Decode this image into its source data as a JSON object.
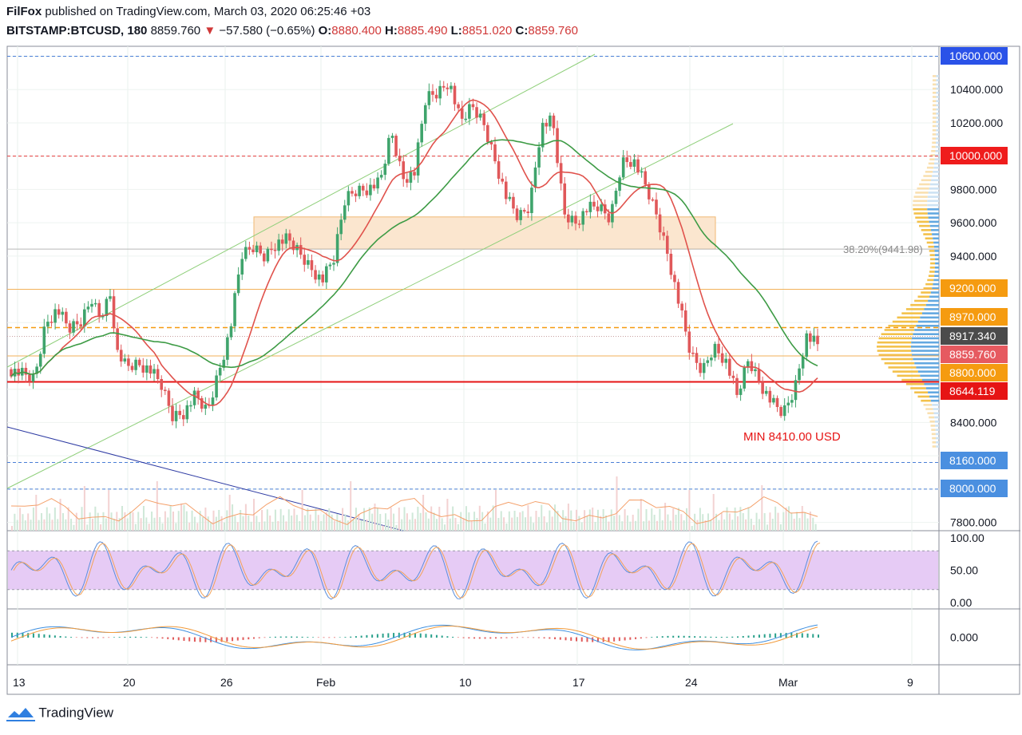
{
  "header": {
    "author": "FilFox",
    "published_text": "published on TradingView.com, March 03, 2020 06:25:46 +03",
    "symbol": "BITSTAMP:BTCUSD, 180",
    "last": "8859.760",
    "change": "−57.580 (−0.65%)",
    "open_label": "O:",
    "open": "8880.400",
    "high_label": "H:",
    "high": "8885.490",
    "low_label": "L:",
    "low": "8851.020",
    "close_label": "C:",
    "close": "8859.760"
  },
  "brand": {
    "name": "TradingView",
    "icon": "tradingview-logo-icon"
  },
  "colors": {
    "up": "#3fa46c",
    "down": "#e0585a",
    "ma_fast": "#e0524c",
    "ma_slow": "#3d9b45",
    "zone_fill": "#fbe6cf",
    "stoch_fill": "#e6cbf5",
    "blue_line": "#2e3ba3",
    "channel": "#8fcf7a",
    "label_blue": "#2a52e8",
    "label_red": "#ef1c1c",
    "label_orange": "#f59b10",
    "label_dark": "#4b4b4b",
    "label_pink": "#e65a60",
    "label_lightblue": "#4a8fe0",
    "label_darkred": "#e61414"
  },
  "chart_data": {
    "type": "candlestick",
    "symbol": "BITSTAMP:BTCUSD",
    "interval": "180",
    "ohlc_last": {
      "open": 8880.4,
      "high": 8885.49,
      "low": 8851.02,
      "close": 8859.76
    },
    "price_axis": {
      "range": [
        7750,
        10660
      ],
      "ticks": [
        "10400.000",
        "10200.000",
        "9800.000",
        "9600.000",
        "9400.000",
        "8400.000",
        "7800.000"
      ]
    },
    "time_axis": {
      "labels": [
        "13",
        "20",
        "26",
        "Feb",
        "10",
        "17",
        "24",
        "Mar",
        "9"
      ]
    },
    "price_labels": [
      {
        "text": "10600.000",
        "value": 10600,
        "color": "label_blue",
        "line": "dashed-blue"
      },
      {
        "text": "10000.000",
        "value": 10000,
        "color": "label_red",
        "line": "dashed-red"
      },
      {
        "text": "9200.000",
        "value": 9200,
        "color": "label_orange",
        "line": "thin-orange"
      },
      {
        "text": "8970.000",
        "value": 8970,
        "color": "label_orange",
        "line": "dashed-orange"
      },
      {
        "text": "8917.340",
        "value": 8917.34,
        "color": "label_dark",
        "line": "dotted"
      },
      {
        "text": "8859.760",
        "value": 8859.76,
        "color": "label_pink",
        "line": "none"
      },
      {
        "text": "8800.000",
        "value": 8800,
        "color": "label_orange",
        "line": "thin-orange"
      },
      {
        "text": "8644.119",
        "value": 8644.119,
        "color": "label_darkred",
        "line": "solid-red"
      },
      {
        "text": "8160.000",
        "value": 8160,
        "color": "label_lightblue",
        "line": "dashed-blue"
      },
      {
        "text": "8000.000",
        "value": 8000,
        "color": "label_lightblue",
        "line": "dashed-blue"
      }
    ],
    "fib_label": "38.20%(9441.98)",
    "fib_value": 9441.98,
    "zone": {
      "from": 9441.98,
      "to": 9635
    },
    "annotation": "MIN 8410.00 USD",
    "indicators": {
      "stochastic": {
        "ticks": [
          "100.00",
          "50.00",
          "0.00"
        ],
        "band": [
          20,
          80
        ]
      },
      "macd": {
        "ticks": [
          "0.000"
        ]
      }
    },
    "close_path": [
      [
        0,
        8720
      ],
      [
        1,
        8690
      ],
      [
        2,
        8660
      ],
      [
        3,
        9000
      ],
      [
        4,
        9080
      ],
      [
        5,
        8960
      ],
      [
        6,
        9000
      ],
      [
        7,
        9150
      ],
      [
        8,
        8990
      ],
      [
        8.5,
        9250
      ],
      [
        9,
        8860
      ],
      [
        10,
        8740
      ],
      [
        11,
        8760
      ],
      [
        12,
        8720
      ],
      [
        13,
        8630
      ],
      [
        14,
        8440
      ],
      [
        15,
        8460
      ],
      [
        16,
        8560
      ],
      [
        17,
        8460
      ],
      [
        18,
        8700
      ],
      [
        19,
        8950
      ],
      [
        20,
        9400
      ],
      [
        21,
        9450
      ],
      [
        22,
        9400
      ],
      [
        23,
        9480
      ],
      [
        24,
        9500
      ],
      [
        25,
        9420
      ],
      [
        26,
        9330
      ],
      [
        27,
        9250
      ],
      [
        28,
        9380
      ],
      [
        29,
        9750
      ],
      [
        30,
        9800
      ],
      [
        31,
        9810
      ],
      [
        32,
        9840
      ],
      [
        33,
        10150
      ],
      [
        34,
        9870
      ],
      [
        35,
        9900
      ],
      [
        36,
        10350
      ],
      [
        37,
        10380
      ],
      [
        38,
        10450
      ],
      [
        39,
        10200
      ],
      [
        40,
        10300
      ],
      [
        41,
        10200
      ],
      [
        42,
        9980
      ],
      [
        43,
        9750
      ],
      [
        44,
        9630
      ],
      [
        45,
        9700
      ],
      [
        46,
        10180
      ],
      [
        47,
        10210
      ],
      [
        48,
        9650
      ],
      [
        49,
        9600
      ],
      [
        50,
        9680
      ],
      [
        51,
        9690
      ],
      [
        52,
        9620
      ],
      [
        53,
        9970
      ],
      [
        54,
        9980
      ],
      [
        55,
        9830
      ],
      [
        56,
        9650
      ],
      [
        57,
        9410
      ],
      [
        58,
        9100
      ],
      [
        59,
        8800
      ],
      [
        60,
        8710
      ],
      [
        61,
        8860
      ],
      [
        62,
        8780
      ],
      [
        63,
        8560
      ],
      [
        64,
        8780
      ],
      [
        65,
        8640
      ],
      [
        66,
        8520
      ],
      [
        67,
        8450
      ],
      [
        68,
        8600
      ],
      [
        69,
        8920
      ],
      [
        70,
        8860
      ]
    ]
  }
}
